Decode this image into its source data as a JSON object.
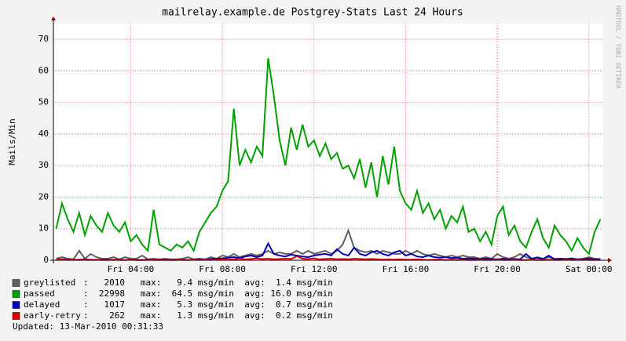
{
  "chart_data": {
    "type": "line",
    "title": "mailrelay.example.de Postgrey-Stats Last 24 Hours",
    "y_label": "Mails/Min",
    "side_label": "RRDTOOL / TOBI OETIKER",
    "updated": "Updated: 13-Mar-2010 00:31:33",
    "grid": true,
    "ylim": [
      0,
      75
    ],
    "yticks": [
      0,
      10,
      20,
      30,
      40,
      50,
      60,
      70
    ],
    "categories": [
      null,
      null,
      null,
      null,
      null,
      null,
      null,
      null,
      null,
      null,
      null,
      null,
      null,
      "Fri 04:00",
      null,
      null,
      null,
      null,
      null,
      null,
      null,
      null,
      null,
      null,
      null,
      null,
      null,
      null,
      null,
      "Fri 08:00",
      null,
      null,
      null,
      null,
      null,
      null,
      null,
      null,
      null,
      null,
      null,
      null,
      null,
      null,
      null,
      "Fri 12:00",
      null,
      null,
      null,
      null,
      null,
      null,
      null,
      null,
      null,
      null,
      null,
      null,
      null,
      null,
      null,
      "Fri 16:00",
      null,
      null,
      null,
      null,
      null,
      null,
      null,
      null,
      null,
      null,
      null,
      null,
      null,
      null,
      null,
      "Fri 20:00",
      null,
      null,
      null,
      null,
      null,
      null,
      null,
      null,
      null,
      null,
      null,
      null,
      null,
      null,
      null,
      "Sat 00:00",
      null,
      null
    ],
    "series": [
      {
        "name": "greylisted",
        "color": "#606060",
        "legend_stats": ":   2010   max:   9.4 msg/min  avg:  1.4 msg/min",
        "values": [
          0.5,
          1,
          0.5,
          0.3,
          3,
          0.5,
          2,
          1,
          0.5,
          0.5,
          1,
          0.3,
          1,
          0.5,
          0.5,
          1.5,
          0.3,
          0.5,
          0.3,
          0.5,
          0.3,
          0.3,
          0.5,
          1,
          0.3,
          0.5,
          0.3,
          1,
          0.5,
          1.5,
          1,
          2,
          1,
          1.5,
          2,
          1.5,
          2,
          3,
          2,
          2.5,
          2,
          2,
          3,
          2,
          3,
          2,
          2.5,
          3,
          2,
          3,
          5,
          9.4,
          4,
          3,
          2.5,
          3,
          2,
          3,
          2.5,
          2,
          2,
          3,
          2,
          3,
          2,
          1.5,
          2,
          1.5,
          1,
          1.5,
          1,
          1.5,
          1,
          1,
          0.5,
          1,
          0.5,
          2,
          1,
          0.5,
          1,
          2,
          1,
          0.5,
          1,
          0.5,
          1,
          0.5,
          0.5,
          0.3,
          0.5,
          0.3,
          0.5,
          1,
          0.5,
          0.3
        ]
      },
      {
        "name": "passed",
        "color": "#00a000",
        "legend_stats": ":  22998   max:  64.5 msg/min  avg: 16.0 msg/min",
        "values": [
          10,
          18,
          13,
          9,
          15,
          8,
          14,
          11,
          9,
          15,
          11,
          9,
          12,
          6,
          8,
          5,
          3,
          16,
          5,
          4,
          3,
          5,
          4,
          6,
          3,
          9,
          12,
          15,
          17,
          22,
          25,
          48,
          30,
          35,
          31,
          36,
          33,
          64,
          52,
          38,
          30,
          42,
          35,
          43,
          36,
          38,
          33,
          37,
          32,
          34,
          29,
          30,
          26,
          32,
          23,
          31,
          20,
          33,
          24,
          36,
          22,
          18,
          16,
          22,
          15,
          18,
          13,
          16,
          10,
          14,
          12,
          17,
          9,
          10,
          6,
          9,
          5,
          14,
          17,
          8,
          11,
          6,
          4,
          9,
          13,
          7,
          4,
          11,
          8,
          6,
          3,
          7,
          4,
          2,
          9,
          13
        ]
      },
      {
        "name": "delayed",
        "color": "#0000c0",
        "legend_stats": ":   1017   max:   5.3 msg/min  avg:  0.7 msg/min",
        "values": [
          0.2,
          0.3,
          0.2,
          0.1,
          0.2,
          0.3,
          0.2,
          0.1,
          0.2,
          0.2,
          0.1,
          0.2,
          0.1,
          0.2,
          0.1,
          0.1,
          0.2,
          0.1,
          0.1,
          0.2,
          0.1,
          0.1,
          0.2,
          0.1,
          0.2,
          0.3,
          0.2,
          0.4,
          0.5,
          0.6,
          0.8,
          1,
          0.7,
          1.2,
          1.5,
          1,
          1.5,
          5.3,
          2,
          1.5,
          1.2,
          1.8,
          1.5,
          1.2,
          1,
          1.5,
          1.8,
          2,
          1.5,
          3.5,
          2,
          1.5,
          4,
          2,
          1.5,
          2.5,
          3,
          2,
          1.5,
          2.5,
          3,
          1.5,
          2,
          1.2,
          1,
          1.5,
          1,
          0.8,
          1,
          0.7,
          0.8,
          0.5,
          0.6,
          0.5,
          0.4,
          0.5,
          0.4,
          0.3,
          0.5,
          0.3,
          0.4,
          0.3,
          2,
          0.5,
          0.8,
          0.4,
          1.5,
          0.3,
          0.5,
          0.4,
          0.6,
          0.3,
          0.4,
          0.5,
          0.3,
          0.4
        ]
      },
      {
        "name": "early-retry",
        "color": "#e00000",
        "legend_stats": ":    262   max:   1.3 msg/min  avg:  0.2 msg/min",
        "values": [
          0.3,
          0.2,
          0.1,
          0.2,
          0.1,
          0.2,
          0.1,
          0.2,
          0.1,
          0.1,
          0.2,
          0.1,
          0.1,
          0.2,
          0.1,
          0.1,
          0.1,
          0.2,
          0.1,
          0.1,
          0.1,
          0.2,
          0.1,
          0.1,
          0.2,
          0.1,
          0.2,
          0.1,
          0.2,
          0.3,
          0.2,
          0.3,
          0.5,
          0.3,
          0.4,
          0.6,
          0.4,
          0.5,
          0.3,
          0.4,
          0.5,
          0.4,
          1.3,
          0.5,
          0.4,
          0.6,
          0.3,
          0.4,
          0.5,
          0.3,
          0.4,
          0.3,
          0.5,
          0.4,
          0.3,
          0.4,
          0.3,
          0.2,
          0.3,
          0.2,
          0.3,
          0.2,
          0.2,
          0.3,
          0.2,
          0.1,
          0.2,
          0.2,
          0.1,
          0.2,
          0.1,
          0.2,
          0.1,
          0.1,
          0.2,
          0.1,
          0.1,
          0.2,
          0.1,
          0.1,
          0.2,
          0.1,
          0.1,
          0.2,
          0.1,
          0.1,
          0.2,
          0.1,
          0.1,
          0.2,
          0.1,
          0.1,
          0.2,
          0.1,
          0.1,
          0.1
        ]
      }
    ]
  }
}
